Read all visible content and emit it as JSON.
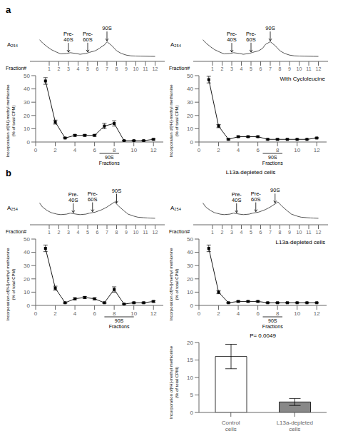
{
  "chart_data": [
    {
      "type": "line",
      "title": "a",
      "x_label": "Fraction#",
      "y_label": "A₂₅₄",
      "x": [
        0,
        0.3,
        0.8,
        1.2,
        1.8,
        2.2,
        2.8,
        3.2,
        3.8,
        4.2,
        4.8,
        5.2,
        5.8,
        6.2,
        6.8,
        7.0,
        7.5,
        8.0,
        8.5,
        9.0,
        9.5,
        10.0,
        10.5,
        11.0,
        11.5,
        12.0
      ],
      "values": [
        5.0,
        4.2,
        3.2,
        2.5,
        1.8,
        1.4,
        1.5,
        1.7,
        1.5,
        1.3,
        1.5,
        1.8,
        2.2,
        2.8,
        3.8,
        4.5,
        3.5,
        2.2,
        1.5,
        1.1,
        0.9,
        0.85,
        0.82,
        0.8,
        0.78,
        0.76
      ],
      "color": "#555555",
      "xlim": [
        -1,
        13
      ],
      "xticks": [
        1,
        2,
        3,
        4,
        5,
        6,
        7,
        8,
        9,
        10,
        11,
        12
      ],
      "ylim": [
        -0.5,
        6.75
      ],
      "tick_labels": "x",
      "annotations": [
        {
          "text": "Pre-\n40S",
          "x": 3.0
        },
        {
          "text": "Pre-\n60S",
          "x": 5.0
        },
        {
          "text": "90S",
          "x": 7.0
        }
      ]
    },
    {
      "type": "line",
      "y_label": "Incorporation of[³H]-methyl methionine\n(% of total CPM)",
      "x": [
        1,
        2,
        3,
        4,
        5,
        6,
        7,
        8,
        9,
        10,
        11,
        12
      ],
      "values": [
        46,
        15,
        3,
        5,
        5,
        5,
        12,
        14,
        1,
        1,
        1,
        2
      ],
      "errors": [
        2.5,
        1.5,
        0.5,
        0.6,
        0.6,
        0.6,
        2.0,
        2.0,
        0.3,
        0.3,
        0.3,
        0.4
      ],
      "color": "black",
      "marker": "square",
      "xlim": [
        0,
        13
      ],
      "xticks": [
        0,
        2,
        4,
        6,
        8,
        10,
        12
      ],
      "ylim": [
        0,
        50
      ],
      "yticks": [
        0,
        10,
        20,
        30,
        40,
        50
      ],
      "annotations": [
        {
          "text": "90S\nFractions",
          "x_range": [
            6.5,
            8.5
          ]
        }
      ]
    },
    {
      "type": "line",
      "x_label": "Fraction#",
      "y_label": "A₂₅₄",
      "x": [
        0,
        0.3,
        0.8,
        1.2,
        1.8,
        2.2,
        2.8,
        3.2,
        3.8,
        4.2,
        4.8,
        5.2,
        5.8,
        6.2,
        6.5,
        7.0,
        7.5,
        8.0,
        8.5,
        9.0,
        9.5,
        10.0,
        10.5,
        11.0,
        11.5,
        12.0
      ],
      "values": [
        5.0,
        4.2,
        3.2,
        2.5,
        1.8,
        1.4,
        1.5,
        1.7,
        1.5,
        1.3,
        1.5,
        1.8,
        2.2,
        2.8,
        3.8,
        4.5,
        3.5,
        2.2,
        1.5,
        1.1,
        0.9,
        0.85,
        0.82,
        0.8,
        0.78,
        0.76
      ],
      "color": "#555555",
      "xlim": [
        -1,
        13
      ],
      "xticks": [
        1,
        2,
        3,
        4,
        5,
        6,
        7,
        8,
        9,
        10,
        11,
        12
      ],
      "ylim": [
        -0.5,
        6.75
      ],
      "tick_labels": "x",
      "annotations": [
        {
          "text": "Pre-\n40S",
          "x": 3.0
        },
        {
          "text": "Pre-\n60S",
          "x": 5.0
        },
        {
          "text": "90S",
          "x": 7.0
        }
      ]
    },
    {
      "type": "line",
      "y_label": "Incorporation of[³H]-methyl methionine\n(% of total CPM)",
      "x": [
        1,
        2,
        3,
        4,
        5,
        6,
        7,
        8,
        9,
        10,
        11,
        12
      ],
      "values": [
        47,
        12,
        2,
        4,
        4,
        4,
        2,
        2,
        2,
        2,
        2,
        3
      ],
      "errors": [
        2.5,
        1.2,
        0.4,
        0.5,
        0.5,
        0.5,
        0.4,
        0.4,
        0.3,
        0.3,
        0.3,
        0.4
      ],
      "color": "black",
      "marker": "square",
      "xlim": [
        0,
        13
      ],
      "xticks": [
        0,
        2,
        4,
        6,
        8,
        10,
        12
      ],
      "ylim": [
        0,
        50
      ],
      "yticks": [
        0,
        10,
        20,
        30,
        40,
        50
      ],
      "annotations": [
        {
          "text": "90S\nFractions",
          "x_range": [
            6.5,
            8.5
          ]
        },
        {
          "text": "With Cycloleucine"
        }
      ]
    },
    {
      "type": "line",
      "title": "b",
      "x_label": "Fraction#",
      "y_label": "A₂₅₄",
      "x": [
        0,
        0.3,
        0.8,
        1.2,
        1.8,
        2.2,
        2.8,
        3.2,
        3.8,
        4.2,
        4.8,
        5.2,
        5.8,
        6.5,
        7.0,
        7.8,
        8.2,
        8.8,
        9.2,
        9.8,
        10.2,
        10.8,
        11.2,
        11.5,
        12.0
      ],
      "values": [
        3.8,
        3.0,
        2.3,
        1.9,
        1.6,
        1.5,
        1.6,
        1.8,
        1.6,
        1.5,
        1.6,
        1.8,
        2.0,
        2.5,
        3.0,
        4.0,
        3.2,
        2.2,
        1.6,
        1.2,
        1.0,
        0.9,
        0.85,
        0.82,
        0.78
      ],
      "color": "#555555",
      "xlim": [
        -1,
        13
      ],
      "xticks": [
        1,
        2,
        3,
        4,
        5,
        6,
        7,
        8,
        9,
        10,
        11,
        12
      ],
      "ylim": [
        -0.5,
        5.13
      ],
      "tick_labels": "x",
      "annotations": [
        {
          "text": "Pre-\n40S",
          "x": 3.5
        },
        {
          "text": "Pre-\n60S",
          "x": 5.5
        },
        {
          "text": "90S",
          "x": 8.0
        }
      ]
    },
    {
      "type": "line",
      "y_label": "Incorporation of[³H]-methyl methionine\n(% of total CPM)",
      "x": [
        1,
        2,
        3,
        4,
        5,
        6,
        7,
        8,
        9,
        10,
        11,
        12
      ],
      "values": [
        43,
        13,
        2,
        5,
        6,
        5,
        2,
        12,
        1,
        2,
        2,
        3
      ],
      "errors": [
        2.5,
        1.5,
        0.5,
        0.7,
        0.7,
        0.7,
        0.5,
        2.0,
        0.3,
        0.5,
        0.5,
        0.5
      ],
      "color": "black",
      "marker": "square",
      "xlim": [
        0,
        13
      ],
      "xticks": [
        0,
        2,
        4,
        6,
        8,
        10,
        12
      ],
      "ylim": [
        0,
        50
      ],
      "yticks": [
        0,
        10,
        20,
        30,
        40,
        50
      ],
      "annotations": [
        {
          "text": "90S\nFractions",
          "x_range": [
            7.0,
            10.0
          ]
        }
      ]
    },
    {
      "type": "line",
      "title": "L13a-depleted cells",
      "x_label": "Fraction#",
      "y_label": "A₂₅₄",
      "x": [
        0,
        0.3,
        0.8,
        1.2,
        1.8,
        2.2,
        2.8,
        3.2,
        3.8,
        4.2,
        4.8,
        5.2,
        5.8,
        6.5,
        7.0,
        7.8,
        8.2,
        8.8,
        9.2,
        9.8,
        10.2,
        10.8,
        11.2,
        11.5,
        12.0
      ],
      "values": [
        3.8,
        3.0,
        2.3,
        1.9,
        1.6,
        1.5,
        1.6,
        1.8,
        1.6,
        1.5,
        1.6,
        1.8,
        2.0,
        2.5,
        3.0,
        4.0,
        3.2,
        2.2,
        1.6,
        1.2,
        1.0,
        0.9,
        0.85,
        0.82,
        0.78
      ],
      "color": "#555555",
      "xlim": [
        -1,
        13
      ],
      "xticks": [
        1,
        2,
        3,
        4,
        5,
        6,
        7,
        8,
        9,
        10,
        11,
        12
      ],
      "ylim": [
        -0.5,
        5.13
      ],
      "tick_labels": "x",
      "annotations": [
        {
          "text": "Pre-\n40S",
          "x": 3.5
        },
        {
          "text": "Pre-\n60S",
          "x": 5.5
        },
        {
          "text": "90S",
          "x": 7.5
        }
      ]
    },
    {
      "type": "line",
      "y_label": "Incorporation of[³H]-methyl methionine\n(% of total CPM)",
      "x": [
        1,
        2,
        3,
        4,
        5,
        6,
        7,
        8,
        9,
        10,
        11,
        12
      ],
      "values": [
        43,
        10,
        2,
        3,
        3,
        3,
        2,
        2,
        2,
        2,
        2,
        2
      ],
      "errors": [
        2.5,
        1.2,
        0.4,
        0.5,
        0.5,
        0.5,
        0.4,
        0.4,
        0.3,
        0.3,
        0.3,
        0.3
      ],
      "color": "black",
      "marker": "square",
      "xlim": [
        0,
        13
      ],
      "xticks": [
        0,
        2,
        4,
        6,
        8,
        10,
        12
      ],
      "ylim": [
        0,
        50
      ],
      "yticks": [
        0,
        10,
        20,
        30,
        40,
        50
      ],
      "annotations": [
        {
          "text": "90S\nFractions",
          "x_range": [
            6.5,
            8.5
          ]
        },
        {
          "text": "L13a-depleted cells"
        }
      ]
    },
    {
      "type": "bar",
      "y_label": "Incorporation of[³H]-methyl methionine\n(% of total CPM)",
      "categories": [
        "Control\ncells",
        "L13a-depleted\ncells"
      ],
      "values": [
        16,
        3
      ],
      "errors": [
        3.5,
        1.0
      ],
      "colors": [
        "white",
        "#888888"
      ],
      "ylim": [
        0,
        20
      ],
      "yticks": [
        0,
        5,
        10,
        15,
        20
      ],
      "annotations": [
        {
          "text": "P= 0.0049"
        }
      ]
    }
  ]
}
